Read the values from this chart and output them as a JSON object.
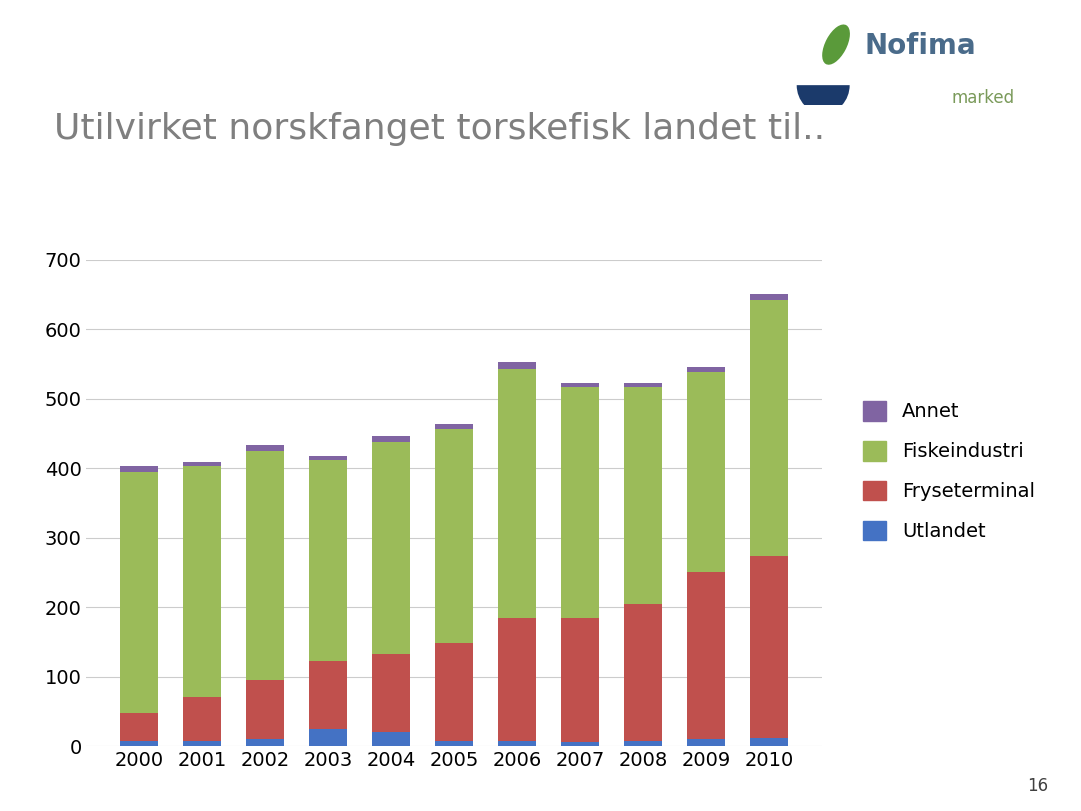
{
  "years": [
    2000,
    2001,
    2002,
    2003,
    2004,
    2005,
    2006,
    2007,
    2008,
    2009,
    2010
  ],
  "utlandet": [
    7,
    8,
    10,
    25,
    20,
    8,
    8,
    6,
    8,
    10,
    12
  ],
  "fryseterminal": [
    40,
    62,
    85,
    97,
    113,
    140,
    177,
    178,
    197,
    240,
    262
  ],
  "fiskeindustri": [
    348,
    333,
    330,
    290,
    305,
    308,
    358,
    333,
    312,
    288,
    368
  ],
  "annet": [
    8,
    6,
    8,
    6,
    8,
    8,
    9,
    6,
    6,
    8,
    8
  ],
  "color_utlandet": "#4472C4",
  "color_fryseterminal": "#C0504D",
  "color_fiskeindustri": "#9BBB59",
  "color_annet": "#8064A2",
  "title": "Utilvirket norskfanget torskefisk landet til..",
  "title_color": "#7F7F7F",
  "ylabel": "",
  "ylim": [
    0,
    700
  ],
  "yticks": [
    0,
    100,
    200,
    300,
    400,
    500,
    600,
    700
  ],
  "background_color": "#FFFFFF",
  "title_fontsize": 26,
  "tick_fontsize": 14,
  "legend_fontsize": 14,
  "nofima_color": "#6F8FAF",
  "marked_color": "#7F9F5F",
  "page_number": "16"
}
